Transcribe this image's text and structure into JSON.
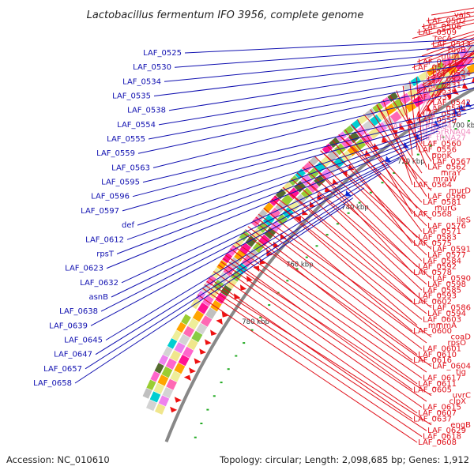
{
  "title": "Lactobacillus fermentum IFO 3956, complete genome",
  "accession": "Accession: NC_010610",
  "summary": "Topology: circular; Length: 2,098,685 bp; Genes: 1,912",
  "colors": {
    "right_label": "#e0101a",
    "rna_label": "#f08cc0",
    "left_label": "#1010b0",
    "arrow_red": "#ee1111",
    "arrow_blue": "#1133dd",
    "backbone": "#888888",
    "dots": "#22aa22"
  },
  "kbp_marks": [
    {
      "label": "620 kbp",
      "t": 0.045
    },
    {
      "label": "640 kbp",
      "t": 0.105
    },
    {
      "label": "660 kbp",
      "t": 0.205
    },
    {
      "label": "680 kbp",
      "t": 0.305
    },
    {
      "label": "700 kbp",
      "t": 0.405
    },
    {
      "label": "720 kbp",
      "t": 0.495
    },
    {
      "label": "740 kbp",
      "t": 0.595
    },
    {
      "label": "760 kbp",
      "t": 0.705
    },
    {
      "label": "780 kbp",
      "t": 0.805
    }
  ],
  "right_labels": [
    {
      "text": "valS",
      "t": 0.015,
      "kind": "gene"
    },
    {
      "text": "LAF_0502",
      "t": 0.055,
      "kind": "gene"
    },
    {
      "text": "LAF_0506",
      "t": 0.075,
      "kind": "gene"
    },
    {
      "text": "LAF_0509",
      "t": 0.095,
      "kind": "gene"
    },
    {
      "text": "recA",
      "t": 0.12,
      "kind": "gene"
    },
    {
      "text": "LAF_0513",
      "t": 0.14,
      "kind": "gene"
    },
    {
      "text": "ruvB",
      "t": 0.165,
      "kind": "gene"
    },
    {
      "text": "mutL",
      "t": 0.165,
      "kind": "gene"
    },
    {
      "text": "LAF_0519",
      "t": 0.19,
      "kind": "gene"
    },
    {
      "text": "LAF_0521",
      "t": 0.21,
      "kind": "gene"
    },
    {
      "text": "LAF_0524",
      "t": 0.225,
      "kind": "gene"
    },
    {
      "text": "LAF_0527",
      "t": 0.24,
      "kind": "gene"
    },
    {
      "text": "LAF_0531",
      "t": 0.265,
      "kind": "gene"
    },
    {
      "text": "LAF_0536",
      "t": 0.285,
      "kind": "gene"
    },
    {
      "text": "LAF_0539",
      "t": 0.305,
      "kind": "gene"
    },
    {
      "text": "LAF_0542",
      "t": 0.325,
      "kind": "gene"
    },
    {
      "text": "LAF_0544",
      "t": 0.345,
      "kind": "gene"
    },
    {
      "text": "LAF_0548",
      "t": 0.36,
      "kind": "gene"
    },
    {
      "text": "LAF_0550",
      "t": 0.38,
      "kind": "gene"
    },
    {
      "text": "LAF_16SrRNA04",
      "t": 0.395,
      "kind": "rna"
    },
    {
      "text": "LAF_5SrRNA04",
      "t": 0.41,
      "kind": "rna"
    },
    {
      "text": "LAF_tRNA27",
      "t": 0.425,
      "kind": "rna"
    },
    {
      "text": "LAF_0560",
      "t": 0.44,
      "kind": "gene"
    },
    {
      "text": "LAF_0556",
      "t": 0.45,
      "kind": "gene"
    },
    {
      "text": "ppnK",
      "t": 0.46,
      "kind": "gene"
    },
    {
      "text": "LAF_0567",
      "t": 0.48,
      "kind": "gene"
    },
    {
      "text": "LAF_0562",
      "t": 0.47,
      "kind": "gene"
    },
    {
      "text": "mraY",
      "t": 0.5,
      "kind": "gene"
    },
    {
      "text": "mraW",
      "t": 0.5,
      "kind": "gene"
    },
    {
      "text": "LAF_0564",
      "t": 0.49,
      "kind": "gene"
    },
    {
      "text": "murD",
      "t": 0.52,
      "kind": "gene"
    },
    {
      "text": "LAF_0566",
      "t": 0.51,
      "kind": "gene"
    },
    {
      "text": "LAF_0581",
      "t": 0.54,
      "kind": "gene"
    },
    {
      "text": "murG",
      "t": 0.54,
      "kind": "gene"
    },
    {
      "text": "LAF_0568",
      "t": 0.53,
      "kind": "gene"
    },
    {
      "text": "ileS",
      "t": 0.56,
      "kind": "gene"
    },
    {
      "text": "LAF_0576",
      "t": 0.56,
      "kind": "gene"
    },
    {
      "text": "LAF_0571",
      "t": 0.55,
      "kind": "gene"
    },
    {
      "text": "LAF_0583",
      "t": 0.58,
      "kind": "gene"
    },
    {
      "text": "LAF_0575",
      "t": 0.57,
      "kind": "gene"
    },
    {
      "text": "LAF_0591",
      "t": 0.59,
      "kind": "gene"
    },
    {
      "text": "LAF_0577",
      "t": 0.59,
      "kind": "gene"
    },
    {
      "text": "LAF_0584",
      "t": 0.6,
      "kind": "gene"
    },
    {
      "text": "LAF_0592",
      "t": 0.61,
      "kind": "gene"
    },
    {
      "text": "LAF_0578",
      "t": 0.61,
      "kind": "gene"
    },
    {
      "text": "LAF_0590",
      "t": 0.62,
      "kind": "gene"
    },
    {
      "text": "LAF_0598",
      "t": 0.63,
      "kind": "gene"
    },
    {
      "text": "LAF_0585",
      "t": 0.63,
      "kind": "gene"
    },
    {
      "text": "LAF_0593",
      "t": 0.64,
      "kind": "gene"
    },
    {
      "text": "LAF_0602",
      "t": 0.655,
      "kind": "gene"
    },
    {
      "text": "LAF_0586",
      "t": 0.655,
      "kind": "gene"
    },
    {
      "text": "LAF_0594",
      "t": 0.67,
      "kind": "gene"
    },
    {
      "text": "LAF_0603",
      "t": 0.675,
      "kind": "gene"
    },
    {
      "text": "mmmA",
      "t": 0.675,
      "kind": "gene"
    },
    {
      "text": "LAF_0600",
      "t": 0.69,
      "kind": "gene"
    },
    {
      "text": "coaD",
      "t": 0.7,
      "kind": "gene"
    },
    {
      "text": "rpsO",
      "t": 0.705,
      "kind": "gene"
    },
    {
      "text": "LAF_0601",
      "t": 0.71,
      "kind": "gene"
    },
    {
      "text": "LAF_0610",
      "t": 0.72,
      "kind": "gene"
    },
    {
      "text": "LAF_0616",
      "t": 0.725,
      "kind": "gene"
    },
    {
      "text": "LAF_0604",
      "t": 0.73,
      "kind": "gene"
    },
    {
      "text": "tig",
      "t": 0.745,
      "kind": "gene"
    },
    {
      "text": "LAF_0617",
      "t": 0.75,
      "kind": "gene"
    },
    {
      "text": "LAF_0611",
      "t": 0.755,
      "kind": "gene"
    },
    {
      "text": "LAF_0605",
      "t": 0.765,
      "kind": "gene"
    },
    {
      "text": "uvrC",
      "t": 0.77,
      "kind": "gene"
    },
    {
      "text": "clpX",
      "t": 0.775,
      "kind": "gene"
    },
    {
      "text": "LAF_0615",
      "t": 0.78,
      "kind": "gene"
    },
    {
      "text": "LAF_0607",
      "t": 0.79,
      "kind": "gene"
    },
    {
      "text": "LAF_0637",
      "t": 0.8,
      "kind": "gene"
    },
    {
      "text": "engB",
      "t": 0.805,
      "kind": "gene"
    },
    {
      "text": "LAF_0629",
      "t": 0.81,
      "kind": "gene"
    },
    {
      "text": "LAF_0618",
      "t": 0.815,
      "kind": "gene"
    },
    {
      "text": "LAF_0608",
      "t": 0.825,
      "kind": "gene"
    }
  ],
  "left_labels": [
    {
      "text": "LAF_0525",
      "t": 0.09
    },
    {
      "text": "LAF_0530",
      "t": 0.1
    },
    {
      "text": "LAF_0534",
      "t": 0.11
    },
    {
      "text": "LAF_0535",
      "t": 0.12
    },
    {
      "text": "LAF_0538",
      "t": 0.13
    },
    {
      "text": "LAF_0554",
      "t": 0.21
    },
    {
      "text": "LAF_0555",
      "t": 0.23
    },
    {
      "text": "LAF_0559",
      "t": 0.25
    },
    {
      "text": "LAF_0563",
      "t": 0.27
    },
    {
      "text": "LAF_0595",
      "t": 0.38
    },
    {
      "text": "LAF_0596",
      "t": 0.395
    },
    {
      "text": "LAF_0597",
      "t": 0.41
    },
    {
      "text": "def",
      "t": 0.425
    },
    {
      "text": "LAF_0612",
      "t": 0.44
    },
    {
      "text": "rpsT",
      "t": 0.455
    },
    {
      "text": "LAF_0623",
      "t": 0.47
    },
    {
      "text": "LAF_0632",
      "t": 0.49
    },
    {
      "text": "asnB",
      "t": 0.51
    },
    {
      "text": "LAF_0638",
      "t": 0.52
    },
    {
      "text": "LAF_0639",
      "t": 0.535
    },
    {
      "text": "LAF_0645",
      "t": 0.55
    },
    {
      "text": "LAF_0647",
      "t": 0.58
    },
    {
      "text": "LAF_0657",
      "t": 0.6
    },
    {
      "text": "LAF_0658",
      "t": 0.615
    }
  ]
}
